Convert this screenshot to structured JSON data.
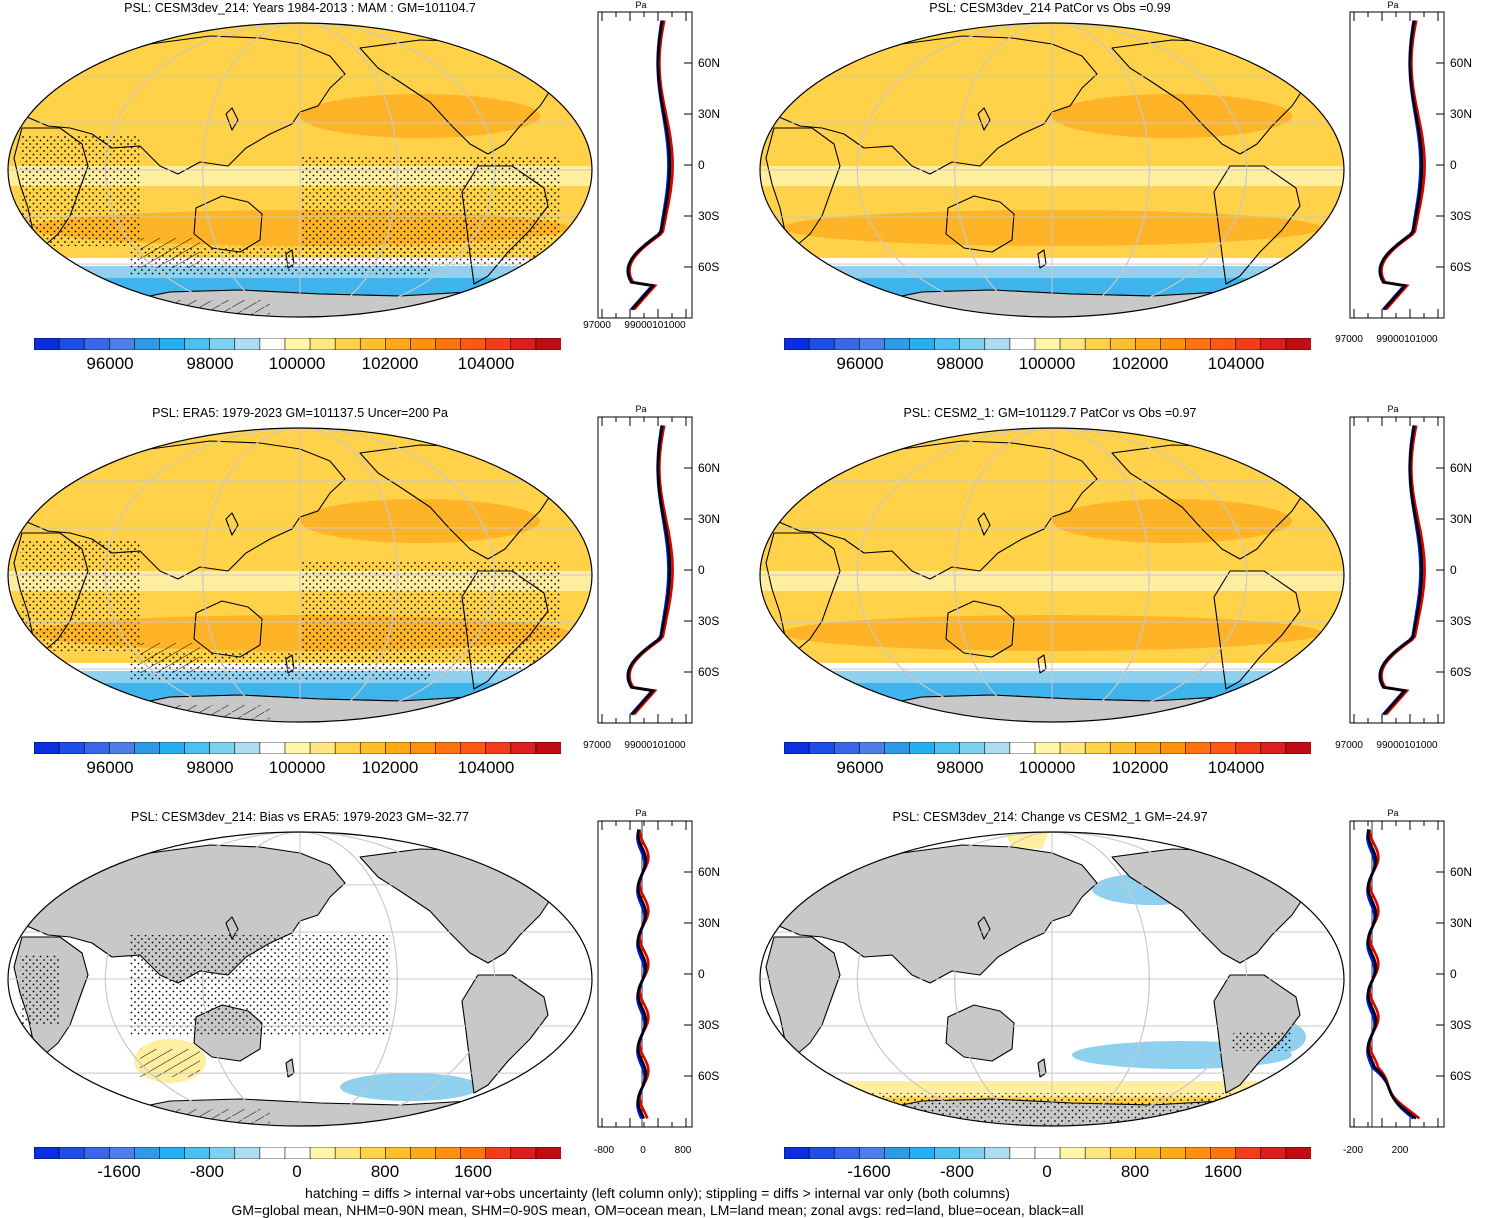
{
  "panels": [
    {
      "title": "PSL: CESM3dev_214: Years 1984-2013 : MAM : GM=101104.7",
      "kind": "abs",
      "stipple": true,
      "hatch": true
    },
    {
      "title": "PSL: CESM3dev_214 PatCor vs Obs =0.99",
      "kind": "abs",
      "stipple": false,
      "hatch": false
    },
    {
      "title": "PSL: ERA5: 1979-2023 GM=101137.5 Uncer=200 Pa",
      "kind": "abs",
      "stipple": true,
      "hatch": true
    },
    {
      "title": "PSL: CESM2_1: GM=101129.7 PatCor vs Obs =0.97",
      "kind": "abs",
      "stipple": false,
      "hatch": false
    },
    {
      "title": "PSL: CESM3dev_214: Bias vs ERA5: 1979-2023 GM=-32.77",
      "kind": "diff",
      "stipple": true,
      "hatch": true
    },
    {
      "title": "PSL: CESM3dev_214: Change vs CESM2_1 GM=-24.97",
      "kind": "diff",
      "stipple": true,
      "hatch": false
    }
  ],
  "colorbars": {
    "abs_labels": [
      "96000",
      "98000",
      "100000",
      "102000",
      "104000"
    ],
    "diff_labels": [
      "-1600",
      "-800",
      "0",
      "800",
      "1600"
    ],
    "abs_colors": [
      "#0a2ee0",
      "#1d4ee6",
      "#3a66e8",
      "#4d7fe8",
      "#2f9ae6",
      "#25aef0",
      "#4cc0f0",
      "#7ed2f0",
      "#aedcf0",
      "#ffffff",
      "#fff6a8",
      "#ffe680",
      "#ffd24a",
      "#ffbe2e",
      "#ffa81a",
      "#ff9010",
      "#ff7410",
      "#ff5812",
      "#f23c1a",
      "#dc1e1e",
      "#c00c12"
    ],
    "diff_colors": [
      "#0a2ee0",
      "#1d4ee6",
      "#3a66e8",
      "#4d7fe8",
      "#2f9ae6",
      "#25aef0",
      "#4cc0f0",
      "#7ed2f0",
      "#aedcf0",
      "#ffffff",
      "#ffffff",
      "#fff6a8",
      "#ffe680",
      "#ffd24a",
      "#ffbe2e",
      "#ffa81a",
      "#ff9010",
      "#ff7410",
      "#f23c1a",
      "#dc1e1e",
      "#c00c12"
    ]
  },
  "zonal": {
    "unit_label": "Pa",
    "lat_labels": [
      "60N",
      "30N",
      "0",
      "30S",
      "60S"
    ],
    "abs_x_labels": [
      "97000",
      "99000101000"
    ],
    "bias_x_labels": [
      "-800",
      "0",
      "800"
    ],
    "change_x_labels": [
      "-200",
      "200"
    ],
    "series_legend": {
      "land": "#e00000",
      "ocean": "#0018d8",
      "all": "#000000"
    }
  },
  "map_colors": {
    "land_gray": "#c8c8c8",
    "yellow_light": "#ffeea0",
    "yellow": "#ffd24a",
    "orange": "#ffb428",
    "blue_light": "#8fd0ef",
    "blue": "#3fb4ec",
    "graticule": "#c8c8c8"
  },
  "footer": {
    "line1": "hatching = diffs > internal var+obs uncertainty (left column only); stippling = diffs > internal var only (both columns)",
    "line2": "GM=global mean, NHM=0-90N mean, SHM=0-90S mean, OM=ocean mean, LM=land mean; zonal avgs: red=land, blue=ocean, black=all"
  }
}
